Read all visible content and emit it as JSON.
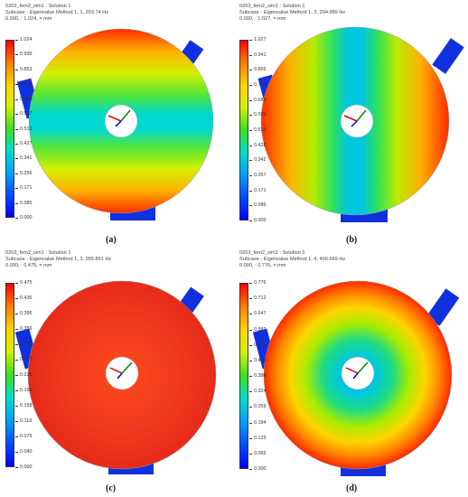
{
  "panels": [
    {
      "id": "a",
      "title": "0203_fem2_sim1 : Solution 1",
      "subcase": "Subcase - Eigenvalue Method 1,  1, 203.74 Hz",
      "range_line": "0.000,  : 1.024,  = mm",
      "ticks": [
        "1.024",
        "0.939",
        "0.853",
        "0.768",
        "0.683",
        "0.597",
        "0.512",
        "0.427",
        "0.341",
        "0.256",
        "0.171",
        "0.085",
        "0.000"
      ],
      "label": "(a)"
    },
    {
      "id": "b",
      "title": "0203_fem2_sim1 : Solution 1",
      "subcase": "Subcase - Eigenvalue Method 1,  2, 204.989 Hz",
      "range_line": "0.000,  : 1.027,  = mm",
      "ticks": [
        "1.027",
        "0.941",
        "0.856",
        "0.770",
        "0.684",
        "0.599",
        "0.513",
        "0.428",
        "0.342",
        "0.257",
        "0.171",
        "0.086",
        "0.000"
      ],
      "label": "(b)"
    },
    {
      "id": "c",
      "title": "0203_fem2_sim1 : Solution 1",
      "subcase": "Subcase - Eigenvalue Method 1,  3, 355.851 Hz",
      "range_line": "0.000,  : 0.475,  = mm",
      "ticks": [
        "0.475",
        "0.436",
        "0.396",
        "0.356",
        "0.317",
        "0.277",
        "0.238",
        "0.198",
        "0.158",
        "0.119",
        "0.079",
        "0.040",
        "0.000"
      ],
      "label": "(c)"
    },
    {
      "id": "d",
      "title": "0203_fem2_sim1 : Solution 1",
      "subcase": "Subcase - Eigenvalue Method 1,  4, 400.669 Hz",
      "range_line": "0.000,  : 0.776,  = mm",
      "ticks": [
        "0.776",
        "0.712",
        "0.647",
        "0.582",
        "0.518",
        "0.453",
        "0.388",
        "0.324",
        "0.259",
        "0.194",
        "0.129",
        "0.065",
        "0.000"
      ],
      "label": "(d)"
    }
  ],
  "colors": {
    "bracket": "#1030e0",
    "background": "#ffffff"
  }
}
